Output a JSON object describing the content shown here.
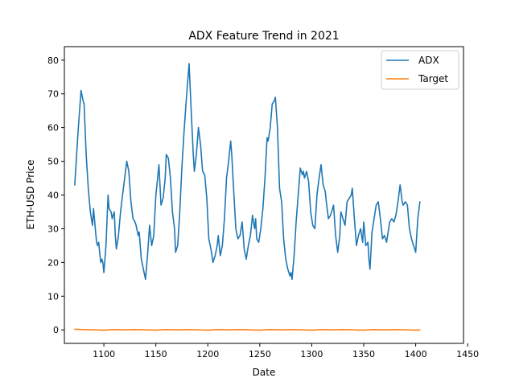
{
  "chart_data": {
    "type": "line",
    "title": "ADX Feature Trend in 2021",
    "xlabel": "Date",
    "ylabel": "ETH-USD Price",
    "xlim": [
      1062,
      1446
    ],
    "ylim": [
      -4,
      84
    ],
    "xticks": [
      1100,
      1150,
      1200,
      1250,
      1300,
      1350,
      1400,
      1450
    ],
    "yticks": [
      0,
      10,
      20,
      30,
      40,
      50,
      60,
      70,
      80
    ],
    "legend": {
      "position": "top-right"
    },
    "grid": false,
    "series": [
      {
        "name": "ADX",
        "color": "#1f77b4",
        "points": [
          [
            1072,
            43
          ],
          [
            1075,
            58
          ],
          [
            1078,
            71
          ],
          [
            1080,
            68
          ],
          [
            1081,
            67
          ],
          [
            1083,
            52
          ],
          [
            1085,
            42
          ],
          [
            1087,
            35
          ],
          [
            1089,
            31
          ],
          [
            1090,
            36
          ],
          [
            1093,
            26
          ],
          [
            1094,
            25
          ],
          [
            1095,
            26
          ],
          [
            1097,
            20
          ],
          [
            1098,
            21
          ],
          [
            1099,
            20
          ],
          [
            1100,
            17
          ],
          [
            1102,
            25
          ],
          [
            1104,
            40
          ],
          [
            1105,
            36
          ],
          [
            1107,
            35
          ],
          [
            1108,
            33
          ],
          [
            1110,
            35
          ],
          [
            1111,
            28
          ],
          [
            1112,
            24
          ],
          [
            1114,
            28
          ],
          [
            1116,
            35
          ],
          [
            1118,
            40
          ],
          [
            1120,
            45
          ],
          [
            1122,
            50
          ],
          [
            1124,
            47
          ],
          [
            1126,
            38
          ],
          [
            1128,
            33
          ],
          [
            1130,
            32
          ],
          [
            1131,
            31
          ],
          [
            1133,
            28
          ],
          [
            1134,
            29
          ],
          [
            1136,
            21
          ],
          [
            1138,
            18
          ],
          [
            1140,
            15
          ],
          [
            1142,
            22
          ],
          [
            1144,
            31
          ],
          [
            1146,
            25
          ],
          [
            1148,
            28
          ],
          [
            1150,
            40
          ],
          [
            1152,
            46
          ],
          [
            1153,
            49
          ],
          [
            1155,
            37
          ],
          [
            1157,
            39
          ],
          [
            1159,
            45
          ],
          [
            1160,
            52
          ],
          [
            1162,
            51
          ],
          [
            1164,
            45
          ],
          [
            1166,
            35
          ],
          [
            1168,
            30
          ],
          [
            1169,
            23
          ],
          [
            1171,
            25
          ],
          [
            1173,
            35
          ],
          [
            1175,
            48
          ],
          [
            1177,
            58
          ],
          [
            1179,
            67
          ],
          [
            1181,
            75
          ],
          [
            1182,
            79
          ],
          [
            1184,
            65
          ],
          [
            1186,
            52
          ],
          [
            1187,
            47
          ],
          [
            1189,
            52
          ],
          [
            1191,
            60
          ],
          [
            1193,
            55
          ],
          [
            1195,
            47
          ],
          [
            1197,
            46
          ],
          [
            1199,
            39
          ],
          [
            1201,
            27
          ],
          [
            1203,
            24
          ],
          [
            1205,
            20
          ],
          [
            1207,
            22
          ],
          [
            1209,
            25
          ],
          [
            1210,
            28
          ],
          [
            1212,
            22
          ],
          [
            1214,
            25
          ],
          [
            1216,
            33
          ],
          [
            1218,
            45
          ],
          [
            1220,
            50
          ],
          [
            1222,
            56
          ],
          [
            1223,
            52
          ],
          [
            1225,
            41
          ],
          [
            1227,
            30
          ],
          [
            1229,
            27
          ],
          [
            1231,
            28
          ],
          [
            1233,
            32
          ],
          [
            1235,
            24
          ],
          [
            1237,
            21
          ],
          [
            1239,
            25
          ],
          [
            1241,
            28
          ],
          [
            1243,
            34
          ],
          [
            1245,
            30
          ],
          [
            1246,
            33
          ],
          [
            1247,
            27
          ],
          [
            1249,
            26
          ],
          [
            1251,
            30
          ],
          [
            1253,
            36
          ],
          [
            1255,
            45
          ],
          [
            1257,
            57
          ],
          [
            1258,
            56
          ],
          [
            1260,
            60
          ],
          [
            1262,
            67
          ],
          [
            1264,
            68
          ],
          [
            1265,
            69
          ],
          [
            1267,
            60
          ],
          [
            1269,
            42
          ],
          [
            1271,
            38
          ],
          [
            1273,
            27
          ],
          [
            1275,
            21
          ],
          [
            1277,
            18
          ],
          [
            1279,
            16
          ],
          [
            1280,
            17
          ],
          [
            1281,
            15
          ],
          [
            1283,
            22
          ],
          [
            1285,
            32
          ],
          [
            1287,
            40
          ],
          [
            1289,
            48
          ],
          [
            1291,
            46
          ],
          [
            1292,
            47
          ],
          [
            1293,
            45
          ],
          [
            1295,
            47
          ],
          [
            1297,
            44
          ],
          [
            1299,
            35
          ],
          [
            1301,
            31
          ],
          [
            1303,
            30
          ],
          [
            1305,
            40
          ],
          [
            1307,
            45
          ],
          [
            1309,
            49
          ],
          [
            1311,
            43
          ],
          [
            1313,
            41
          ],
          [
            1314,
            38
          ],
          [
            1316,
            33
          ],
          [
            1318,
            34
          ],
          [
            1320,
            36
          ],
          [
            1321,
            37
          ],
          [
            1323,
            28
          ],
          [
            1325,
            23
          ],
          [
            1327,
            28
          ],
          [
            1328,
            35
          ],
          [
            1330,
            33
          ],
          [
            1332,
            31
          ],
          [
            1334,
            38
          ],
          [
            1336,
            39
          ],
          [
            1338,
            40
          ],
          [
            1339,
            42
          ],
          [
            1341,
            33
          ],
          [
            1343,
            25
          ],
          [
            1345,
            28
          ],
          [
            1347,
            30
          ],
          [
            1349,
            26
          ],
          [
            1350,
            32
          ],
          [
            1352,
            25
          ],
          [
            1354,
            26
          ],
          [
            1355,
            21
          ],
          [
            1356,
            18
          ],
          [
            1358,
            29
          ],
          [
            1360,
            33
          ],
          [
            1362,
            37
          ],
          [
            1364,
            38
          ],
          [
            1366,
            33
          ],
          [
            1368,
            27
          ],
          [
            1370,
            28
          ],
          [
            1372,
            26
          ],
          [
            1374,
            30
          ],
          [
            1375,
            32
          ],
          [
            1377,
            33
          ],
          [
            1379,
            32
          ],
          [
            1381,
            34
          ],
          [
            1383,
            38
          ],
          [
            1385,
            43
          ],
          [
            1387,
            38
          ],
          [
            1388,
            37
          ],
          [
            1390,
            38
          ],
          [
            1392,
            37
          ],
          [
            1394,
            30
          ],
          [
            1396,
            27
          ],
          [
            1398,
            25
          ],
          [
            1400,
            23
          ],
          [
            1402,
            33
          ],
          [
            1404,
            38
          ]
        ]
      },
      {
        "name": "Target",
        "color": "#ff7f0e",
        "points": [
          [
            1072,
            0.2
          ],
          [
            1080,
            0.1
          ],
          [
            1090,
            0.0
          ],
          [
            1100,
            -0.1
          ],
          [
            1110,
            0.1
          ],
          [
            1120,
            0.0
          ],
          [
            1130,
            0.1
          ],
          [
            1140,
            0.0
          ],
          [
            1150,
            -0.1
          ],
          [
            1160,
            0.1
          ],
          [
            1170,
            0.0
          ],
          [
            1180,
            0.1
          ],
          [
            1190,
            0.0
          ],
          [
            1200,
            -0.1
          ],
          [
            1210,
            0.1
          ],
          [
            1220,
            0.0
          ],
          [
            1230,
            0.1
          ],
          [
            1240,
            0.0
          ],
          [
            1250,
            -0.1
          ],
          [
            1260,
            0.1
          ],
          [
            1270,
            0.0
          ],
          [
            1280,
            0.1
          ],
          [
            1290,
            0.0
          ],
          [
            1300,
            -0.1
          ],
          [
            1310,
            0.1
          ],
          [
            1320,
            0.0
          ],
          [
            1330,
            0.1
          ],
          [
            1340,
            0.0
          ],
          [
            1350,
            -0.1
          ],
          [
            1360,
            0.1
          ],
          [
            1370,
            0.0
          ],
          [
            1380,
            0.1
          ],
          [
            1390,
            0.0
          ],
          [
            1400,
            -0.1
          ],
          [
            1404,
            0.0
          ]
        ]
      }
    ]
  }
}
